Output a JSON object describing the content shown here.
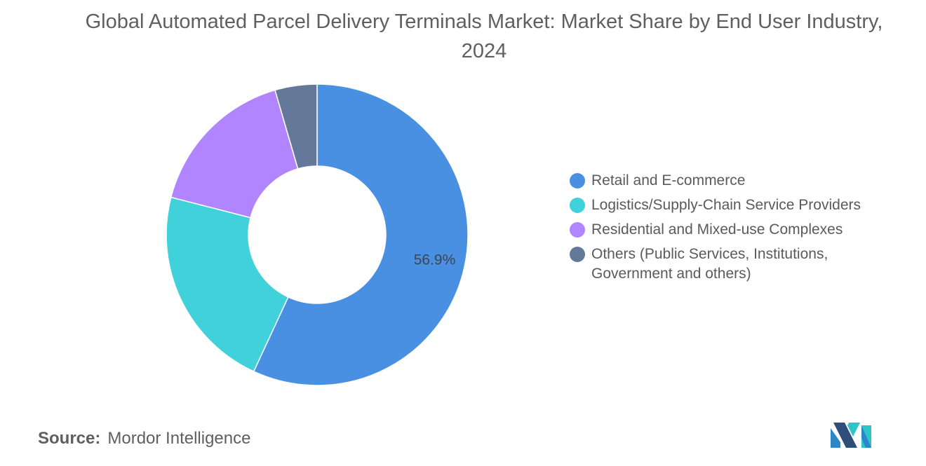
{
  "title": "Global Automated Parcel Delivery Terminals Market: Market Share by End User Industry, 2024",
  "source": {
    "label": "Source:",
    "value": "Mordor Intelligence"
  },
  "colors": {
    "retail": "#4a90e2",
    "logistics": "#40d1db",
    "residential": "#b085ff",
    "others": "#64789a"
  },
  "chart_data": {
    "type": "pie",
    "variant": "donut",
    "title": "Global Automated Parcel Delivery Terminals Market: Market Share by End User Industry, 2024",
    "series": [
      {
        "name": "Retail and E-commerce",
        "value": 56.9,
        "data_label": "56.9%",
        "color": "#4a90e2"
      },
      {
        "name": "Logistics/Supply-Chain Service Providers",
        "value": 22.1,
        "color": "#40d1db"
      },
      {
        "name": "Residential and Mixed-use Complexes",
        "value": 16.5,
        "color": "#b085ff"
      },
      {
        "name": "Others (Public Services, Institutions, Government and others)",
        "value": 4.5,
        "color": "#64789a"
      }
    ],
    "legend_position": "right"
  },
  "legend": [
    {
      "label": "Retail and E-commerce",
      "color": "#4a90e2"
    },
    {
      "label": "Logistics/Supply-Chain Service Providers",
      "color": "#40d1db"
    },
    {
      "label": "Residential and Mixed-use Complexes",
      "color": "#b085ff"
    },
    {
      "label": "Others (Public Services, Institutions, Government and others)",
      "color": "#64789a"
    }
  ],
  "logo": {
    "name": "mordor-intelligence-logo"
  }
}
